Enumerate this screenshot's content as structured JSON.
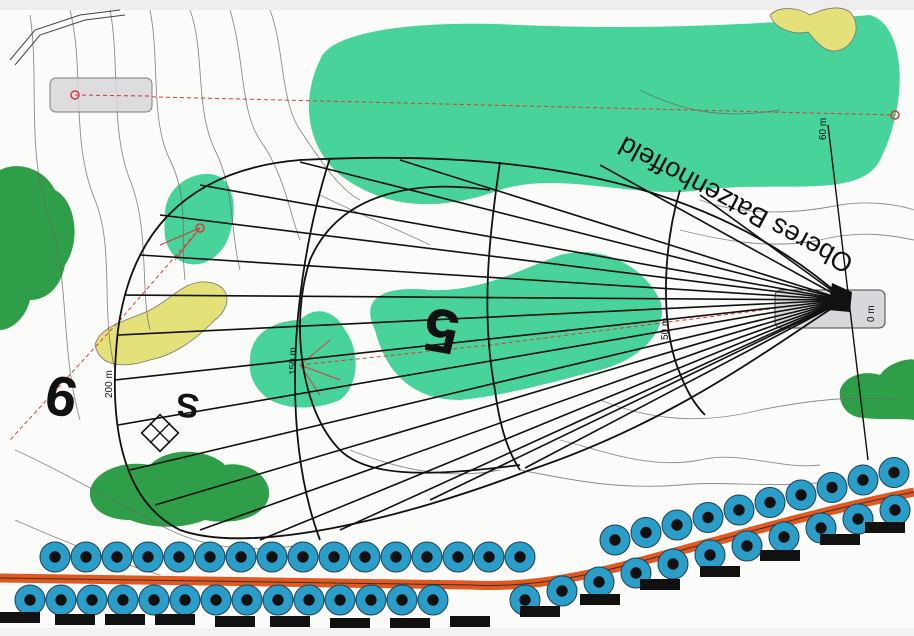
{
  "map": {
    "area_name": "Oberes Batzenhoffeld",
    "hole_number": "5",
    "prev_hole_number": "9",
    "marker_s": "S",
    "distances": {
      "d0": "0 m",
      "d50": "50 m",
      "d60": "60 m",
      "d150": "150 m",
      "d200": "200 m"
    },
    "colors": {
      "background": "#fbfbf9",
      "forest_green": "#2f9e48",
      "light_green": "#47d39a",
      "yellow": "#e4e07a",
      "blue_tree": "#2a9ec8",
      "road_orange": "#e2581e",
      "contour": "#555555",
      "line_red": "#d93a3a"
    }
  }
}
